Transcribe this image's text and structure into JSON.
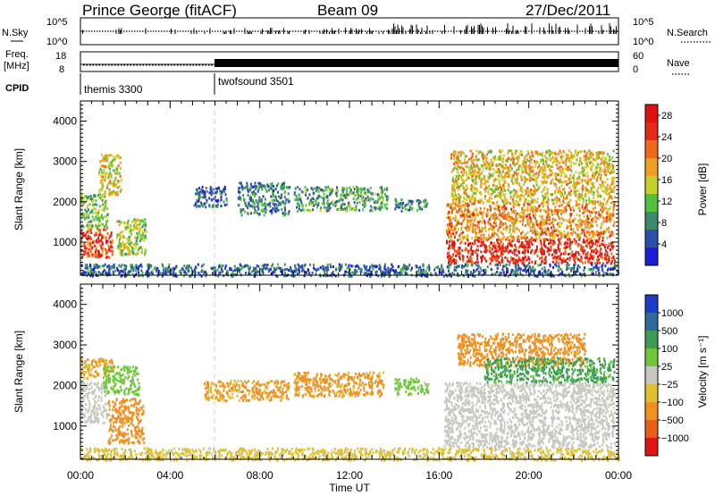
{
  "header": {
    "station": "Prince George (fitACF)",
    "beam": "Beam 09",
    "date": "27/Dec/2011"
  },
  "strip": {
    "nsky_label": "N.Sky",
    "nsky_ticks": [
      "10^5",
      "10^0"
    ],
    "nsearch_label": "N.Search",
    "nsearch_ticks": [
      "10^5",
      "10^0"
    ],
    "freq_label_1": "Freq.",
    "freq_label_2": "[MHz]",
    "freq_ticks": [
      "18",
      "8"
    ],
    "nave_label": "Nave",
    "nave_ticks": [
      "60",
      "0"
    ],
    "cpid_label": "CPID",
    "cpid_segments": [
      {
        "name": "themis 3300",
        "start_hour": 0,
        "end_hour": 6
      },
      {
        "name": "twofsound 3501",
        "start_hour": 6,
        "end_hour": 24
      }
    ]
  },
  "colors": {
    "power_scale": [
      "#1d1dd8",
      "#2c4fa7",
      "#3c8a6b",
      "#52c13c",
      "#c8d12a",
      "#f0a020",
      "#ef6a18",
      "#e32a17",
      "#e01010"
    ],
    "velocity_scale": [
      "#1d3cc8",
      "#2e6a9c",
      "#3c9c54",
      "#6fc83a",
      "#c8c8c0",
      "#e0c030",
      "#f09020",
      "#e86018",
      "#e01414"
    ],
    "ground_scatter": "#c8c8c0"
  },
  "chart_data": [
    {
      "type": "heatmap",
      "panel": "power",
      "ylabel": "Slant Range [km]",
      "xlabel": "Time UT",
      "x_unit": "hours UT",
      "xlim": [
        0,
        24
      ],
      "ylim": [
        180,
        4500
      ],
      "yticks": [
        1000,
        2000,
        3000,
        4000
      ],
      "colorbar_label": "Power [dB]",
      "colorbar_ticks": [
        4,
        8,
        12,
        16,
        20,
        24,
        28
      ],
      "colorbar_range": [
        0,
        30
      ],
      "echo_regions": [
        {
          "t0": 0.0,
          "t1": 1.4,
          "r0": 650,
          "r1": 1350,
          "value": 24
        },
        {
          "t0": 0.0,
          "t1": 1.2,
          "r0": 1350,
          "r1": 2200,
          "value": 12
        },
        {
          "t0": 0.8,
          "t1": 1.8,
          "r0": 2200,
          "r1": 3200,
          "value": 16
        },
        {
          "t0": 1.6,
          "t1": 2.9,
          "r0": 700,
          "r1": 1600,
          "value": 14
        },
        {
          "t0": 5.0,
          "t1": 6.5,
          "r0": 1900,
          "r1": 2400,
          "value": 6
        },
        {
          "t0": 7.0,
          "t1": 9.3,
          "r0": 1700,
          "r1": 2500,
          "value": 8
        },
        {
          "t0": 9.5,
          "t1": 13.7,
          "r0": 1800,
          "r1": 2400,
          "value": 10
        },
        {
          "t0": 14.0,
          "t1": 15.5,
          "r0": 1800,
          "r1": 2100,
          "value": 8
        },
        {
          "t0": 16.3,
          "t1": 23.8,
          "r0": 500,
          "r1": 1100,
          "value": 26
        },
        {
          "t0": 16.3,
          "t1": 23.8,
          "r0": 1100,
          "r1": 2000,
          "value": 20
        },
        {
          "t0": 16.5,
          "t1": 23.8,
          "r0": 2000,
          "r1": 3300,
          "value": 17
        },
        {
          "t0": 0.0,
          "t1": 24.0,
          "r0": 180,
          "r1": 480,
          "value": 6
        }
      ]
    },
    {
      "type": "heatmap",
      "panel": "velocity",
      "ylabel": "Slant Range [km]",
      "xlabel": "Time UT",
      "x_unit": "hours UT",
      "xlim": [
        0,
        24
      ],
      "ylim": [
        180,
        4500
      ],
      "yticks": [
        1000,
        2000,
        3000,
        4000
      ],
      "xticks": [
        "00:00",
        "04:00",
        "08:00",
        "12:00",
        "16:00",
        "20:00",
        "00:00"
      ],
      "colorbar_label": "Velocity [m s⁻¹]",
      "colorbar_ticks": [
        "1000",
        "500",
        "100",
        "25",
        "−25",
        "−100",
        "−500",
        "−1000"
      ],
      "echo_regions": [
        {
          "t0": 0.0,
          "t1": 1.2,
          "r0": 1100,
          "r1": 2100,
          "value": "ground"
        },
        {
          "t0": 0.0,
          "t1": 1.5,
          "r0": 2200,
          "r1": 2700,
          "value": -100
        },
        {
          "t0": 1.2,
          "t1": 2.8,
          "r0": 600,
          "r1": 1700,
          "value": -200
        },
        {
          "t0": 1.0,
          "t1": 2.6,
          "r0": 1800,
          "r1": 2500,
          "value": 50
        },
        {
          "t0": 5.5,
          "t1": 9.3,
          "r0": 1650,
          "r1": 2150,
          "value": -120
        },
        {
          "t0": 9.5,
          "t1": 13.5,
          "r0": 1750,
          "r1": 2350,
          "value": -150
        },
        {
          "t0": 14.0,
          "t1": 15.5,
          "r0": 1800,
          "r1": 2200,
          "value": 40
        },
        {
          "t0": 16.2,
          "t1": 23.8,
          "r0": 500,
          "r1": 2100,
          "value": "ground"
        },
        {
          "t0": 16.8,
          "t1": 22.5,
          "r0": 2500,
          "r1": 3300,
          "value": -300
        },
        {
          "t0": 18.0,
          "t1": 23.8,
          "r0": 2100,
          "r1": 2700,
          "value": 150
        },
        {
          "t0": 0.0,
          "t1": 24.0,
          "r0": 180,
          "r1": 480,
          "value": -40
        }
      ]
    }
  ]
}
